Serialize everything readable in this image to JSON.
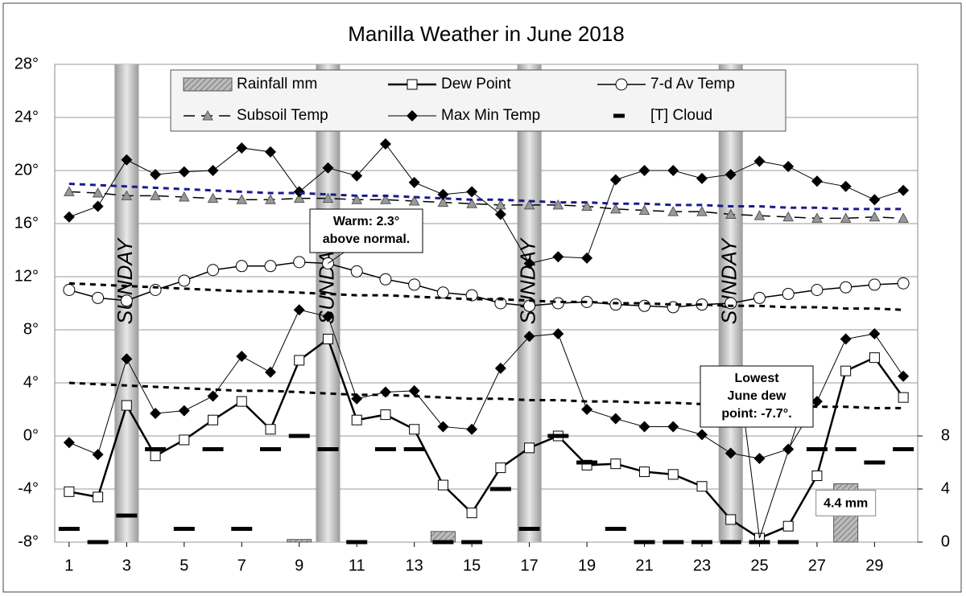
{
  "chart_data": {
    "type": "line",
    "title": "Manilla Weather in June 2018",
    "x": [
      1,
      2,
      3,
      4,
      5,
      6,
      7,
      8,
      9,
      10,
      11,
      12,
      13,
      14,
      15,
      16,
      17,
      18,
      19,
      20,
      21,
      22,
      23,
      24,
      25,
      26,
      27,
      28,
      29,
      30
    ],
    "xlim": [
      0.5,
      30.5
    ],
    "xticks": [
      1,
      3,
      5,
      7,
      9,
      11,
      13,
      15,
      17,
      19,
      21,
      23,
      25,
      27,
      29
    ],
    "ylim": [
      -8,
      28
    ],
    "yticks": [
      {
        "value": -8,
        "label": "-8°"
      },
      {
        "value": -4,
        "label": "-4°"
      },
      {
        "value": 0,
        "label": "0°"
      },
      {
        "value": 4,
        "label": "4°"
      },
      {
        "value": 8,
        "label": "8°"
      },
      {
        "value": 12,
        "label": "12°"
      },
      {
        "value": 16,
        "label": "16°"
      },
      {
        "value": 20,
        "label": "20°"
      },
      {
        "value": 24,
        "label": "24°"
      },
      {
        "value": 28,
        "label": "28°"
      }
    ],
    "y2lim": [
      0,
      36
    ],
    "y2ticks": [
      0,
      4,
      8
    ],
    "grid": true,
    "sundays": {
      "days": [
        3,
        10,
        17,
        24
      ],
      "label": "SUNDAY"
    },
    "series": [
      {
        "name": "Rainfall mm",
        "kind": "bar",
        "axis": "y2",
        "color": "#a0a0a0",
        "values": [
          0,
          0,
          0,
          0,
          0,
          0,
          0,
          0,
          0.2,
          0,
          0,
          0,
          0,
          0.8,
          0,
          0,
          0,
          0,
          0,
          0,
          0,
          0,
          0,
          0,
          0,
          0,
          0,
          4.4,
          0,
          0
        ],
        "value_labels": [
          null,
          null,
          null,
          null,
          null,
          null,
          null,
          null,
          null,
          null,
          null,
          null,
          null,
          null,
          null,
          null,
          null,
          null,
          null,
          null,
          null,
          null,
          null,
          null,
          null,
          null,
          null,
          "4.4 mm",
          null,
          null
        ]
      },
      {
        "name": "Dew Point",
        "kind": "line",
        "marker": "square",
        "color": "#000000",
        "width": 2.5,
        "values": [
          -4.2,
          -4.6,
          2.3,
          -1.5,
          -0.3,
          1.2,
          2.6,
          0.5,
          5.7,
          7.3,
          1.2,
          1.6,
          0.5,
          -3.7,
          -5.8,
          -2.4,
          -0.9,
          0.0,
          -2.2,
          -2.1,
          -2.7,
          -2.9,
          -3.8,
          -6.3,
          -7.7,
          -6.8,
          -3.0,
          4.9,
          5.9,
          2.9
        ]
      },
      {
        "name": "7-d Av Temp",
        "kind": "line",
        "marker": "circle",
        "color": "#000000",
        "width": 1.5,
        "values": [
          11.0,
          10.4,
          10.2,
          11.0,
          11.7,
          12.5,
          12.8,
          12.8,
          13.1,
          13.0,
          12.4,
          11.8,
          11.4,
          10.8,
          10.6,
          10.0,
          9.8,
          10.0,
          10.1,
          9.9,
          9.8,
          9.7,
          9.9,
          10.0,
          10.4,
          10.7,
          11.0,
          11.2,
          11.4,
          11.5
        ]
      },
      {
        "name": "Subsoil Temp",
        "kind": "line",
        "marker": "triangle",
        "dash": "14 8",
        "color": "#000000",
        "width": 1.5,
        "values": [
          18.4,
          18.3,
          18.1,
          18.1,
          18.0,
          17.9,
          17.8,
          17.8,
          17.9,
          17.9,
          17.8,
          17.8,
          17.7,
          17.6,
          17.5,
          17.4,
          17.4,
          17.4,
          17.3,
          17.1,
          17.0,
          16.9,
          16.9,
          16.7,
          16.6,
          16.5,
          16.4,
          16.4,
          16.5,
          16.4
        ]
      },
      {
        "name": "Max Min Temp",
        "kind": "line",
        "marker": "diamond",
        "color": "#000000",
        "width": 1,
        "values": [
          16.5,
          17.3,
          20.8,
          19.7,
          19.9,
          20.0,
          21.7,
          21.4,
          18.4,
          20.2,
          19.6,
          22.0,
          19.1,
          18.2,
          18.4,
          16.7,
          13.0,
          13.5,
          13.4,
          19.3,
          20.0,
          20.0,
          19.4,
          19.7,
          20.7,
          20.3,
          19.2,
          18.8,
          17.8,
          18.5
        ]
      },
      {
        "name": "[T]   Cloud",
        "kind": "dash",
        "axis": "y2",
        "color": "#000000",
        "values": [
          1,
          0,
          2,
          7,
          1,
          7,
          1,
          7,
          8,
          7,
          0,
          7,
          7,
          0,
          0,
          4,
          1,
          8,
          6,
          1,
          0,
          0,
          0,
          0,
          0,
          0,
          7,
          7,
          6,
          7
        ]
      },
      {
        "kind": "line",
        "marker": "diamond",
        "color": "#000000",
        "width": 1,
        "values": [
          -0.5,
          -1.4,
          5.8,
          1.7,
          1.9,
          3.0,
          6.0,
          4.8,
          9.5,
          9.0,
          2.8,
          3.3,
          3.4,
          0.7,
          0.5,
          5.1,
          7.5,
          7.7,
          2.0,
          1.3,
          0.7,
          0.7,
          0.1,
          -1.3,
          -1.7,
          -1.0,
          2.6,
          7.3,
          7.7,
          4.5
        ]
      },
      {
        "kind": "line",
        "dash": "7 6",
        "color": "#1a1a8c",
        "width": 3,
        "values": [
          19.0,
          18.9,
          18.8,
          18.7,
          18.6,
          18.5,
          18.4,
          18.3,
          18.3,
          18.2,
          18.1,
          18.1,
          18.0,
          17.9,
          17.8,
          17.8,
          17.7,
          17.6,
          17.6,
          17.5,
          17.5,
          17.4,
          17.4,
          17.3,
          17.3,
          17.2,
          17.2,
          17.1,
          17.1,
          17.1
        ]
      },
      {
        "kind": "line",
        "dash": "7 6",
        "color": "#000000",
        "width": 3,
        "values": [
          11.5,
          11.4,
          11.3,
          11.2,
          11.1,
          11.0,
          10.9,
          10.9,
          10.8,
          10.7,
          10.6,
          10.6,
          10.5,
          10.4,
          10.3,
          10.3,
          10.2,
          10.1,
          10.1,
          10.0,
          10.0,
          9.9,
          9.9,
          9.8,
          9.8,
          9.7,
          9.7,
          9.6,
          9.6,
          9.5
        ]
      },
      {
        "kind": "line",
        "dash": "7 6",
        "color": "#000000",
        "width": 3,
        "values": [
          4.0,
          3.9,
          3.8,
          3.7,
          3.6,
          3.5,
          3.4,
          3.4,
          3.3,
          3.2,
          3.1,
          3.1,
          3.0,
          2.9,
          2.8,
          2.8,
          2.7,
          2.7,
          2.6,
          2.6,
          2.5,
          2.5,
          2.4,
          2.4,
          2.3,
          2.3,
          2.2,
          2.2,
          2.1,
          2.1
        ]
      }
    ],
    "annotations": [
      {
        "text": [
          "Warm: 2.3°",
          "above normal."
        ],
        "x": 10,
        "y": 13
      },
      {
        "text": [
          "Lowest",
          "June dew",
          "point: -7.7°."
        ],
        "x": 25,
        "y": -7.7
      }
    ]
  }
}
